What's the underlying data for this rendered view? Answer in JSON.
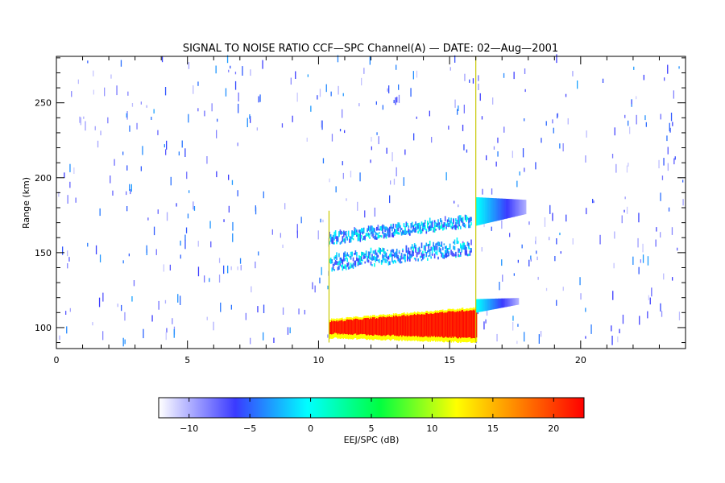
{
  "chart_data": {
    "type": "heatmap",
    "title": "SIGNAL TO NOISE RATIO CCF—SPC Channel(A) — DATE: 02—Aug—2001",
    "xlabel": "",
    "ylabel": "Range (km)",
    "xlim": [
      0,
      24
    ],
    "ylim": [
      86,
      281
    ],
    "x_ticks": [
      0,
      5,
      10,
      15,
      20
    ],
    "x_tick_labels": [
      "0",
      "5",
      "10",
      "15",
      "20"
    ],
    "y_ticks": [
      100,
      150,
      200,
      250
    ],
    "y_tick_labels": [
      "100",
      "150",
      "200",
      "250"
    ],
    "grid": false,
    "colorbar": {
      "label": "EEJ/SPC (dB)",
      "range": [
        -12.5,
        22.5
      ],
      "ticks": [
        -10,
        -5,
        0,
        5,
        10,
        15,
        20
      ],
      "tick_labels": [
        "−10",
        "−5",
        "0",
        "5",
        "10",
        "15",
        "20"
      ],
      "colormap": [
        "#ffffff",
        "#3a3aff",
        "#00ffff",
        "#00ff40",
        "#ffff00",
        "#ff8000",
        "#ff0000"
      ]
    },
    "regions": [
      {
        "x": [
          10.4,
          16.0
        ],
        "y": [
          92,
          111
        ],
        "snr": 22
      },
      {
        "x": [
          10.4,
          15.8
        ],
        "y": [
          91,
          115
        ],
        "snr": 12
      },
      {
        "x": [
          10.4,
          15.8
        ],
        "y": [
          133,
          168
        ],
        "snr": -6
      },
      {
        "x": [
          16.0,
          17.9
        ],
        "y": [
          168,
          187
        ],
        "snr": -3
      },
      {
        "x": [
          16.0,
          17.6
        ],
        "y": [
          110,
          119
        ],
        "snr": -3
      },
      {
        "x": [
          0.0,
          24.0
        ],
        "y": [
          90,
          280
        ],
        "snr": -7
      }
    ]
  }
}
